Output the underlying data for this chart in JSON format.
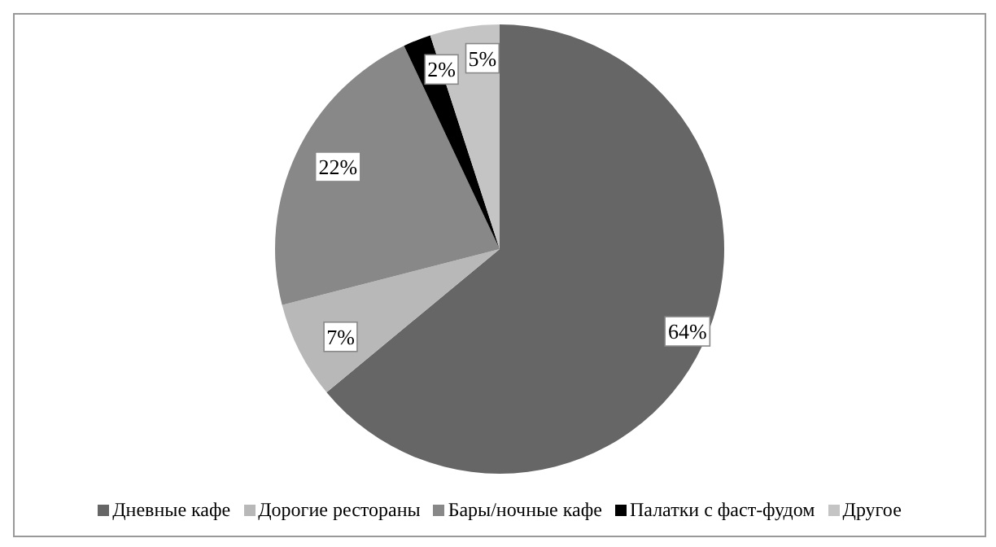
{
  "chart_data": {
    "type": "pie",
    "categories": [
      "Дневные кафе",
      "Дорогие рестораны",
      "Бары/ночные кафе",
      "Палатки с фаст-фудом",
      "Другое"
    ],
    "values": [
      64,
      7,
      22,
      2,
      5
    ],
    "colors": [
      "#666666",
      "#b8b8b8",
      "#888888",
      "#000000",
      "#c4c4c4"
    ],
    "value_labels": [
      "64%",
      "7%",
      "22%",
      "2%",
      "5%"
    ],
    "legend": "bottom"
  }
}
